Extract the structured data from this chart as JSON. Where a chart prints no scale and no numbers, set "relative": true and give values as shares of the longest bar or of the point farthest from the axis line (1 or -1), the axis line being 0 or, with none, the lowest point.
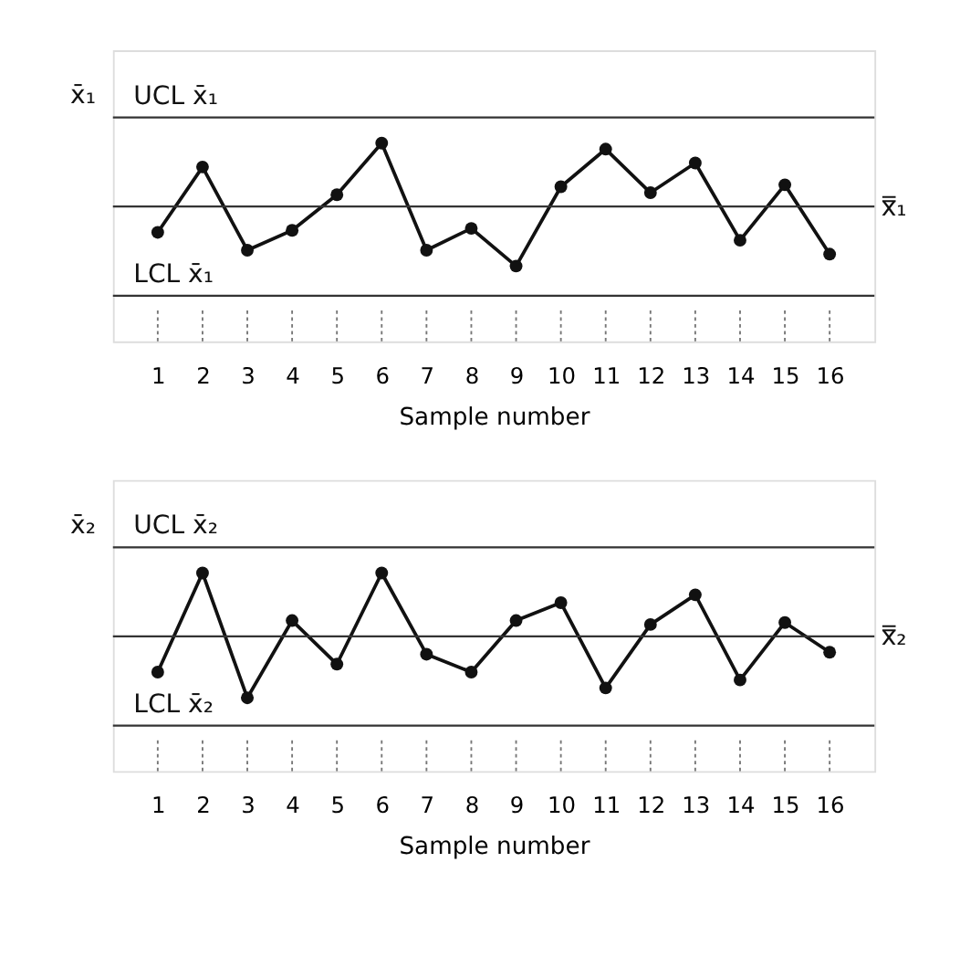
{
  "chart_data": [
    {
      "type": "line",
      "relative": true,
      "ylabel": "x̄₁",
      "xlabel": "Sample number",
      "x": [
        1,
        2,
        3,
        4,
        5,
        6,
        7,
        8,
        9,
        10,
        11,
        12,
        13,
        14,
        15,
        16
      ],
      "xlim": [
        0,
        17
      ],
      "xticks": [
        1,
        2,
        3,
        4,
        5,
        6,
        7,
        8,
        9,
        10,
        11,
        12,
        13,
        14,
        15,
        16
      ],
      "marker": "circle",
      "line_style": "solid",
      "grid": false,
      "series": [
        {
          "color": "#111111",
          "values": [
            0.55,
            0.88,
            0.46,
            0.56,
            0.74,
            1,
            0.46,
            0.57,
            0.38,
            0.78,
            0.97,
            0.75,
            0.9,
            0.51,
            0.79,
            0.44
          ]
        }
      ],
      "ref_lines": [
        {
          "axis": "y",
          "value": 1.13,
          "label": "UCL x̄₁",
          "color": "#333333"
        },
        {
          "axis": "y",
          "value": 0.68,
          "label": "x̿₁",
          "color": "#333333"
        },
        {
          "axis": "y",
          "value": 0.23,
          "label": "LCL x̄₁",
          "color": "#333333"
        }
      ]
    },
    {
      "type": "line",
      "relative": true,
      "ylabel": "x̄₂",
      "xlabel": "Sample number",
      "x": [
        1,
        2,
        3,
        4,
        5,
        6,
        7,
        8,
        9,
        10,
        11,
        12,
        13,
        14,
        15,
        16
      ],
      "xlim": [
        0,
        17
      ],
      "xticks": [
        1,
        2,
        3,
        4,
        5,
        6,
        7,
        8,
        9,
        10,
        11,
        12,
        13,
        14,
        15,
        16
      ],
      "marker": "circle",
      "line_style": "solid",
      "grid": false,
      "series": [
        {
          "color": "#111111",
          "values": [
            0.5,
            1,
            0.37,
            0.76,
            0.54,
            1,
            0.59,
            0.5,
            0.76,
            0.85,
            0.42,
            0.74,
            0.89,
            0.46,
            0.75,
            0.6
          ]
        }
      ],
      "ref_lines": [
        {
          "axis": "y",
          "value": 1.13,
          "label": "UCL x̄₂",
          "color": "#333333"
        },
        {
          "axis": "y",
          "value": 0.68,
          "label": "x̿₂",
          "color": "#333333"
        },
        {
          "axis": "y",
          "value": 0.23,
          "label": "LCL x̄₂",
          "color": "#333333"
        }
      ]
    }
  ]
}
